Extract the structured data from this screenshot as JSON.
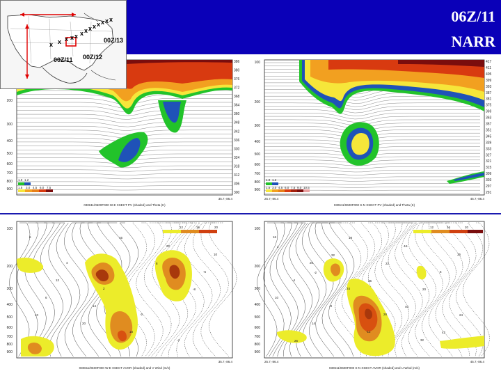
{
  "header": {
    "time_label": "06Z/11",
    "model_label": "NARR",
    "bg_color": "#0a00b8"
  },
  "locator_map": {
    "labels": [
      "00Z/13",
      "00Z/11",
      "00Z/12"
    ],
    "marker_glyph": "x",
    "arrow_color": "#e00000",
    "box_color": "#e00000"
  },
  "panels": [
    {
      "id": "pv-we",
      "caption": "030611/0600F000 W-E XSECT PV (shaded) and Theta (K)",
      "left_endpoint": "",
      "right_endpoint": "35.7,-86.4",
      "pressure_ticks": [
        "200",
        "300",
        "400",
        "500",
        "600",
        "700",
        "800",
        "900"
      ],
      "theta_labels": [
        "386",
        "380",
        "376",
        "372",
        "368",
        "364",
        "360",
        "348",
        "342",
        "336",
        "330",
        "324",
        "318",
        "312",
        "306",
        "300"
      ],
      "legend_values": [
        "1.0",
        "1.2",
        "1.5",
        "3.0",
        "4.5",
        "6.0",
        "7.5"
      ]
    },
    {
      "id": "pv-sn",
      "caption": "030611/0600F000 S-N XSECT PV (shaded) and Theta (K)",
      "left_endpoint": "25.7,-86.4",
      "right_endpoint": "45.7,-86.4",
      "pressure_ticks": [
        "100",
        "200",
        "300",
        "400",
        "500",
        "600",
        "700",
        "800",
        "900"
      ],
      "theta_labels": [
        "417",
        "411",
        "405",
        "399",
        "393",
        "387",
        "381",
        "375",
        "369",
        "363",
        "357",
        "351",
        "345",
        "339",
        "333",
        "327",
        "321",
        "315",
        "309",
        "303",
        "297",
        "291"
      ],
      "legend_values": [
        "1.0",
        "1.2",
        "1.5",
        "3.0",
        "4.5",
        "6.0",
        "7.5",
        "9.0",
        "10.5"
      ]
    },
    {
      "id": "avor-we",
      "caption": "030611/0600F000 W-E XSECT AVOR (shaded) and V Wind (m/s)",
      "left_endpoint": "",
      "right_endpoint": "35.7,-86.4",
      "pressure_ticks": [
        "100",
        "200",
        "300",
        "400",
        "500",
        "600",
        "700",
        "800",
        "900"
      ],
      "legend_values": [
        "12",
        "16",
        "20"
      ],
      "contour_labels": [
        "6",
        "4",
        "2",
        "-2",
        "-4",
        "10",
        "12",
        "14",
        "18",
        "22",
        "-6",
        "6",
        "20",
        "16",
        "8",
        "-8",
        "10"
      ]
    },
    {
      "id": "avor-sn",
      "caption": "030611/0600F000 S-N XSECT AVOR (shaded) and U Wind (m/s)",
      "left_endpoint": "25.7,-86.4",
      "right_endpoint": "45.7,-86.4",
      "pressure_ticks": [
        "100",
        "200",
        "300",
        "400",
        "500",
        "600",
        "700",
        "800",
        "900"
      ],
      "legend_values": [
        "12",
        "16",
        "20"
      ],
      "contour_labels": [
        "16",
        "20",
        "24",
        "28",
        "32",
        "36",
        "-4",
        "-8",
        "-12",
        "-16",
        "6",
        "10",
        "14",
        "18",
        "22",
        "20",
        "24",
        "26",
        "32",
        "36",
        "40",
        "42",
        "2",
        "-2"
      ]
    }
  ],
  "colors": {
    "pv_green": "#22c32a",
    "pv_blue": "#1f52b8",
    "pv_yellow": "#f6e63a",
    "pv_orange": "#f2a020",
    "pv_red": "#d83a10",
    "pv_darkred": "#7a0d0d",
    "avor_yellow": "#ecec2a",
    "avor_orange": "#e08c20",
    "avor_red": "#a8380c"
  }
}
